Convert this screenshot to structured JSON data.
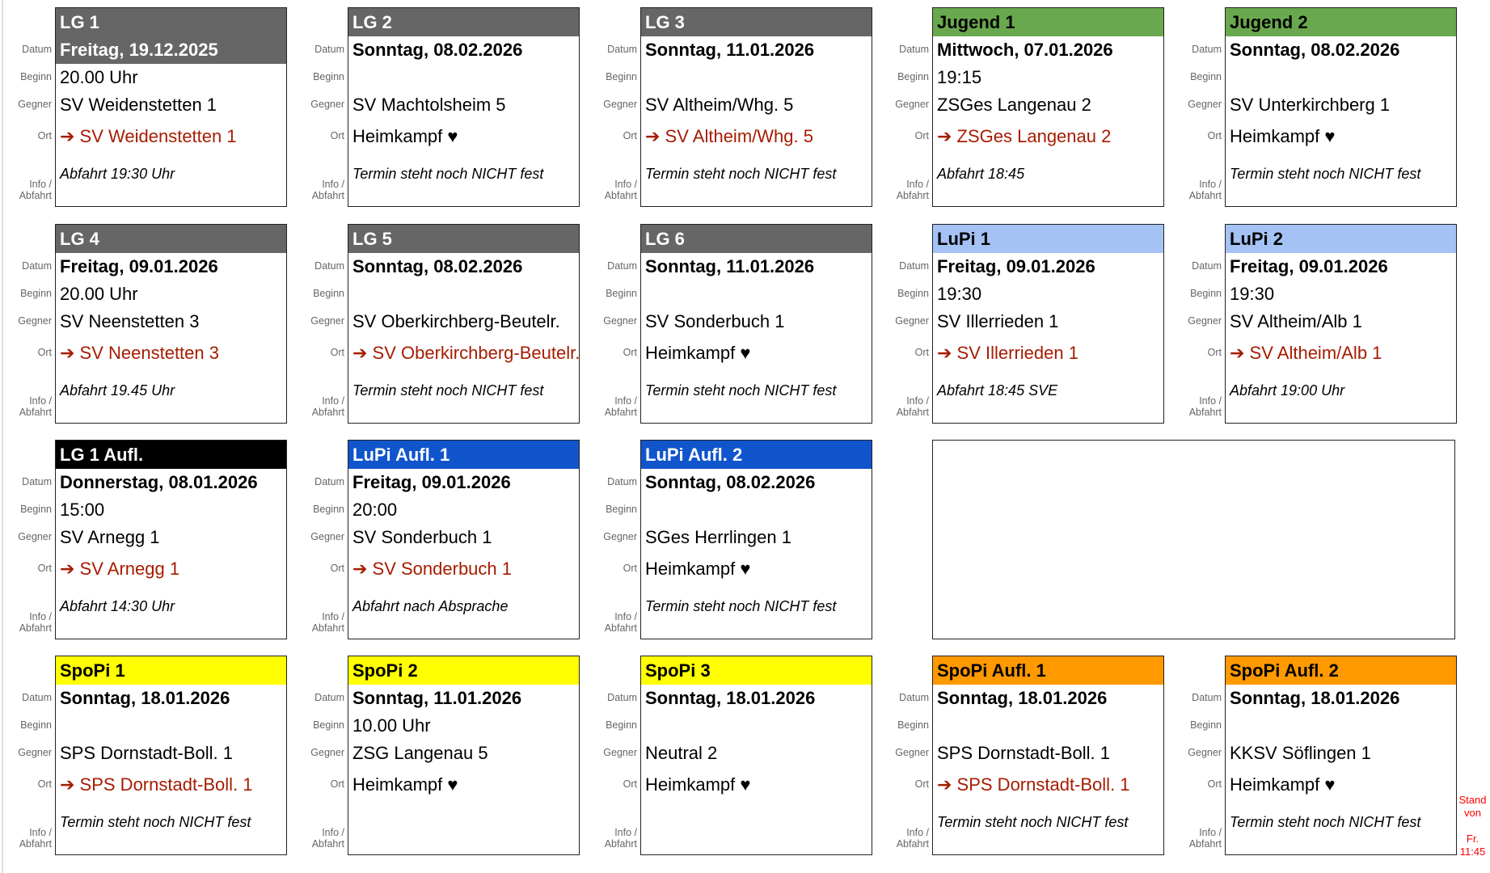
{
  "labels": {
    "datum": "Datum",
    "beginn": "Beginn",
    "gegner": "Gegner",
    "ort": "Ort",
    "info1": "Info /",
    "info2": "Abfahrt"
  },
  "colors": {
    "gray": "#666666",
    "green": "#6aa84f",
    "lightblue": "#a4c2f4",
    "black": "#000000",
    "blue": "#1155cc",
    "yellow": "#ffff00",
    "orange": "#ff9900",
    "away": "#a61c00"
  },
  "cards": [
    {
      "title": "LG 1",
      "color": "gray",
      "title_text": "#ffffff",
      "date_in_header": true,
      "date": "Freitag, 19.12.2025",
      "begin": "20.00 Uhr",
      "opponent": "SV Weidenstetten 1",
      "location": "➔ SV Weidenstetten 1",
      "away": true,
      "info": "Abfahrt 19:30 Uhr"
    },
    {
      "title": "LG 2",
      "color": "gray",
      "title_text": "#ffffff",
      "date": "Sonntag, 08.02.2026",
      "begin": "",
      "opponent": "SV Machtolsheim 5",
      "location": "Heimkampf ♥",
      "away": false,
      "info": "Termin steht noch NICHT fest"
    },
    {
      "title": "LG 3",
      "color": "gray",
      "title_text": "#ffffff",
      "date": "Sonntag, 11.01.2026",
      "begin": "",
      "opponent": "SV Altheim/Whg. 5",
      "location": "➔ SV Altheim/Whg. 5",
      "away": true,
      "info": "Termin steht noch NICHT fest"
    },
    {
      "title": "Jugend 1",
      "color": "green",
      "title_text": "#000000",
      "date": "Mittwoch, 07.01.2026",
      "begin": "19:15",
      "opponent": "ZSGes Langenau 2",
      "location": "➔ ZSGes Langenau 2",
      "away": true,
      "info": "Abfahrt 18:45"
    },
    {
      "title": "Jugend 2",
      "color": "green",
      "title_text": "#000000",
      "date": "Sonntag, 08.02.2026",
      "begin": "",
      "opponent": "SV Unterkirchberg 1",
      "location": "Heimkampf ♥",
      "away": false,
      "info": "Termin steht noch NICHT fest"
    },
    {
      "title": "LG 4",
      "color": "gray",
      "title_text": "#ffffff",
      "date": "Freitag, 09.01.2026",
      "begin": "20.00 Uhr",
      "opponent": "SV Neenstetten 3",
      "location": "➔ SV Neenstetten 3",
      "away": true,
      "info": "Abfahrt 19.45 Uhr"
    },
    {
      "title": "LG 5",
      "color": "gray",
      "title_text": "#ffffff",
      "date": "Sonntag, 08.02.2026",
      "begin": "",
      "opponent": "SV Oberkirchberg-Beutelr.",
      "location": "➔ SV Oberkirchberg-Beutelr.",
      "away": true,
      "info": "Termin steht noch NICHT fest"
    },
    {
      "title": "LG 6",
      "color": "gray",
      "title_text": "#ffffff",
      "date": "Sonntag, 11.01.2026",
      "begin": "",
      "opponent": "SV Sonderbuch 1",
      "location": "Heimkampf ♥",
      "away": false,
      "info": "Termin steht noch NICHT fest"
    },
    {
      "title": "LuPi 1",
      "color": "lightblue",
      "title_text": "#000000",
      "date": "Freitag, 09.01.2026",
      "begin": "19:30",
      "opponent": "SV Illerrieden 1",
      "location": "➔ SV Illerrieden 1",
      "away": true,
      "info": "Abfahrt 18:45 SVE"
    },
    {
      "title": "LuPi 2",
      "color": "lightblue",
      "title_text": "#000000",
      "date": "Freitag, 09.01.2026",
      "begin": "19:30",
      "opponent": "SV Altheim/Alb 1",
      "location": "➔ SV Altheim/Alb 1",
      "away": true,
      "info": "Abfahrt 19:00 Uhr"
    },
    {
      "title": "LG 1 Aufl.",
      "color": "black",
      "title_text": "#ffffff",
      "date": "Donnerstag, 08.01.2026",
      "begin": "15:00",
      "opponent": "SV Arnegg 1",
      "location": "➔ SV Arnegg 1",
      "away": true,
      "info": "Abfahrt 14:30 Uhr"
    },
    {
      "title": "LuPi Aufl. 1",
      "color": "blue",
      "title_text": "#ffffff",
      "date": "Freitag, 09.01.2026",
      "begin": "20:00",
      "opponent": "SV Sonderbuch 1",
      "location": "➔ SV Sonderbuch 1",
      "away": true,
      "info": "Abfahrt nach Absprache"
    },
    {
      "title": "LuPi Aufl. 2",
      "color": "blue",
      "title_text": "#ffffff",
      "date": "Sonntag, 08.02.2026",
      "begin": "",
      "opponent": "SGes Herrlingen 1",
      "location": "Heimkampf ♥",
      "away": false,
      "info": "Termin steht noch NICHT fest"
    },
    null,
    null,
    {
      "title": "SpoPi 1",
      "color": "yellow",
      "title_text": "#000000",
      "date": "Sonntag, 18.01.2026",
      "begin": "",
      "opponent": "SPS Dornstadt-Boll. 1",
      "location": "➔ SPS Dornstadt-Boll. 1",
      "away": true,
      "info": "Termin steht noch NICHT fest"
    },
    {
      "title": "SpoPi 2",
      "color": "yellow",
      "title_text": "#000000",
      "date": "Sonntag, 11.01.2026",
      "begin": "10.00 Uhr",
      "opponent": "ZSG Langenau 5",
      "location": "Heimkampf ♥",
      "away": false,
      "info": ""
    },
    {
      "title": "SpoPi 3",
      "color": "yellow",
      "title_text": "#000000",
      "date": "Sonntag, 18.01.2026",
      "begin": "",
      "opponent": "Neutral 2",
      "location": "Heimkampf ♥",
      "away": false,
      "info": ""
    },
    {
      "title": "SpoPi Aufl. 1",
      "color": "orange",
      "title_text": "#000000",
      "date": "Sonntag, 18.01.2026",
      "begin": "",
      "opponent": "SPS Dornstadt-Boll. 1",
      "location": "➔ SPS Dornstadt-Boll. 1",
      "away": true,
      "info": "Termin steht noch NICHT fest"
    },
    {
      "title": "SpoPi Aufl. 2",
      "color": "orange",
      "title_text": "#000000",
      "date": "Sonntag, 18.01.2026",
      "begin": "",
      "opponent": "KKSV Söflingen 1",
      "location": "Heimkampf ♥",
      "away": false,
      "info": "Termin steht noch NICHT fest"
    }
  ],
  "stand": {
    "line1": "Stand",
    "line2": "von",
    "line3": "Fr.",
    "line4": "11:45"
  }
}
